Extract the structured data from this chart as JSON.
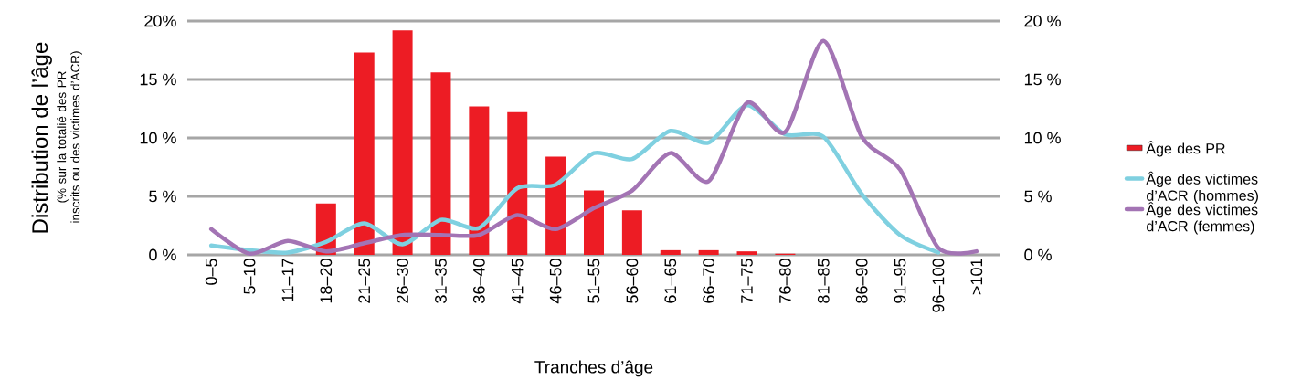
{
  "chart_data": {
    "type": "bar",
    "xlabel": "Tranches d’âge",
    "ylabel": "Distribution de l’âge",
    "annotations": [
      "(% sur la totalié des PR inscrits ou des victimes d’ACR)"
    ],
    "categories": [
      "0–5",
      "5–10",
      "11–17",
      "18–20",
      "21–25",
      "26–30",
      "31–35",
      "36–40",
      "41–45",
      "46–50",
      "51–55",
      "56–60",
      "61–65",
      "66–70",
      "71–75",
      "76–80",
      "81–85",
      "86–90",
      "91–95",
      "96–100",
      ">101"
    ],
    "series": [
      {
        "name": "Âge des PR",
        "color": "#ed1c24",
        "values": [
          null,
          null,
          null,
          4.4,
          17.3,
          19.2,
          15.6,
          12.7,
          12.2,
          8.4,
          5.5,
          3.8,
          0.4,
          0.4,
          0.3,
          0.1,
          null,
          null,
          null,
          null,
          null
        ]
      },
      {
        "name": "Âge des victimes d’ACR (hommes)",
        "type": "line",
        "color": "#7fd0e0",
        "values": [
          0.8,
          0.4,
          0.2,
          1.1,
          2.7,
          0.9,
          3.0,
          2.3,
          5.7,
          6.0,
          8.7,
          8.2,
          10.6,
          9.6,
          12.8,
          10.3,
          10.1,
          5.2,
          1.7,
          0.2,
          null
        ]
      },
      {
        "name": "Âge des victimes d’ACR (femmes)",
        "type": "line",
        "color": "#a374b4",
        "values": [
          2.2,
          0.1,
          1.2,
          0.3,
          1.0,
          1.7,
          1.7,
          1.7,
          3.4,
          2.2,
          4.0,
          5.5,
          8.7,
          6.3,
          13.0,
          10.5,
          18.3,
          10.1,
          7.3,
          0.6,
          0.3
        ]
      }
    ],
    "ylim": [
      0,
      20
    ],
    "yticks": [
      {
        "value": 0,
        "label": "0 %"
      },
      {
        "value": 5,
        "label": "5 %"
      },
      {
        "value": 10,
        "label": "10 %"
      },
      {
        "value": 15,
        "label": "15 %"
      },
      {
        "value": 20,
        "label": "20%"
      }
    ],
    "y2lim": [
      0,
      20
    ],
    "y2ticks": [
      {
        "value": 0,
        "label": "0 %"
      },
      {
        "value": 5,
        "label": "5 %"
      },
      {
        "value": 10,
        "label": "10 %"
      },
      {
        "value": 15,
        "label": "15 %"
      },
      {
        "value": 20,
        "label": "20 %"
      }
    ],
    "grid": "y",
    "legend": "right"
  }
}
